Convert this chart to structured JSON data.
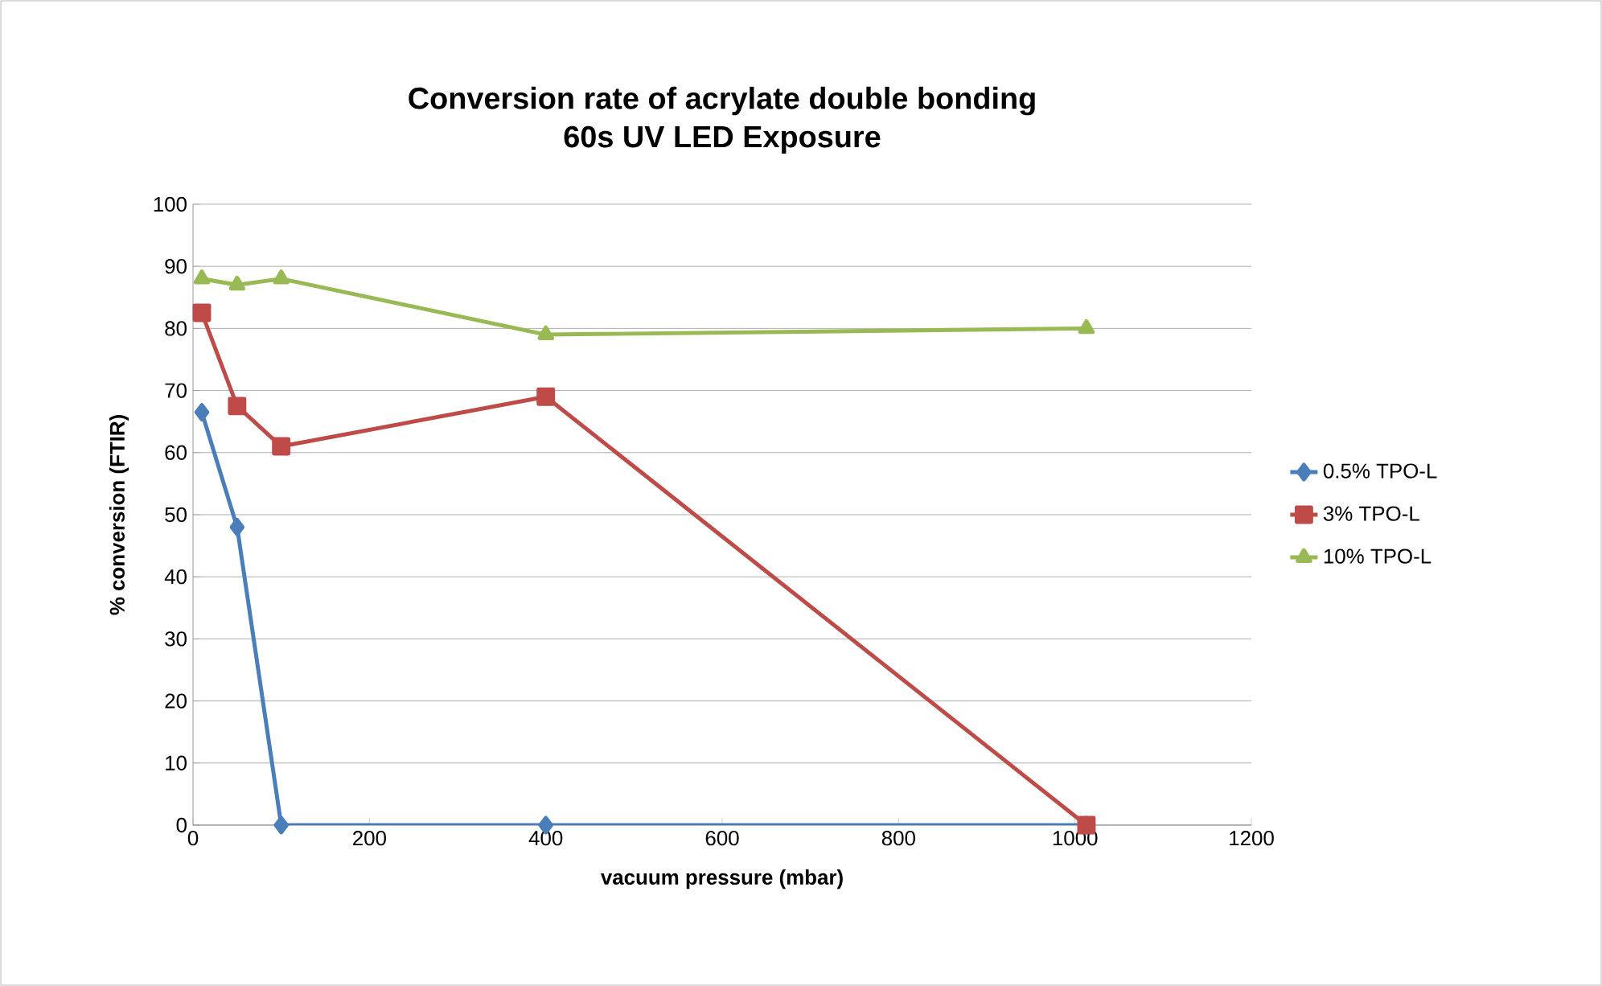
{
  "chart_data": {
    "type": "line",
    "title": "Conversion rate of acrylate double bonding\n60s UV LED Exposure",
    "xlabel": "vacuum pressure (mbar)",
    "ylabel": "% conversion (FTIR)",
    "x": [
      10,
      50,
      100,
      400,
      1013
    ],
    "series": [
      {
        "name": "0.5% TPO-L",
        "color": "#4a7ebb",
        "marker": "diamond",
        "values": [
          66.5,
          48,
          0,
          0,
          0
        ]
      },
      {
        "name": "3% TPO-L",
        "color": "#be4b48",
        "marker": "square",
        "values": [
          82.5,
          67.5,
          61,
          69,
          0
        ]
      },
      {
        "name": "10% TPO-L",
        "color": "#98b954",
        "marker": "triangle",
        "values": [
          88,
          87,
          88,
          79,
          80
        ]
      }
    ],
    "xlim": [
      0,
      1200
    ],
    "xticks": [
      0,
      200,
      400,
      600,
      800,
      1000,
      1200
    ],
    "ylim": [
      0,
      100
    ],
    "yticks": [
      0,
      10,
      20,
      30,
      40,
      50,
      60,
      70,
      80,
      90,
      100
    ],
    "grid": "y",
    "legend": "right",
    "line_style": "solid"
  }
}
